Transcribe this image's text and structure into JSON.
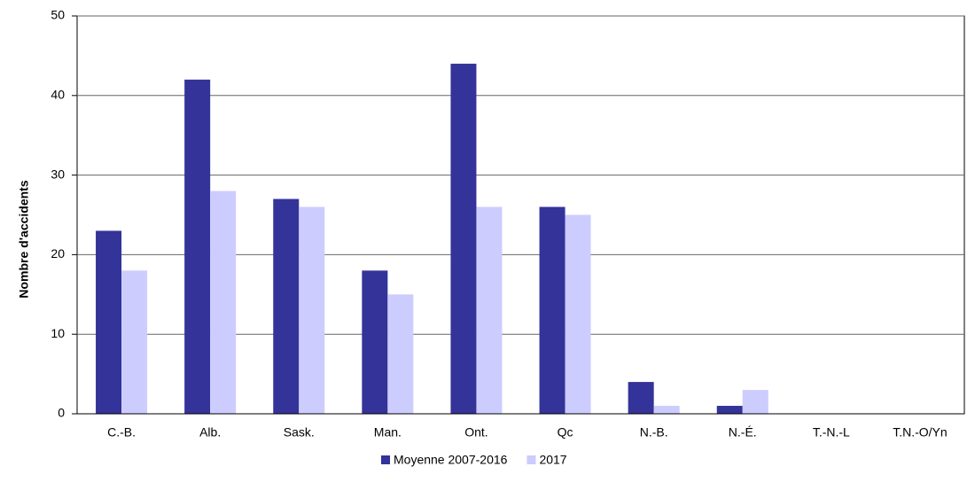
{
  "chart_data": {
    "type": "bar",
    "y_label": "Nombre d'accidents",
    "categories": [
      "C.-B.",
      "Alb.",
      "Sask.",
      "Man.",
      "Ont.",
      "Qc",
      "N.-B.",
      "N.-É.",
      "T.-N.-L",
      "T.N.-O/Yn"
    ],
    "series": [
      {
        "name": "Moyenne 2007-2016",
        "color": "#333399",
        "values": [
          23,
          42,
          27,
          18,
          44,
          26,
          4,
          1,
          0,
          0
        ]
      },
      {
        "name": "2017",
        "color": "#ccccff",
        "values": [
          18,
          28,
          26,
          15,
          26,
          25,
          1,
          3,
          0,
          0
        ]
      }
    ],
    "ylim": [
      0,
      50
    ],
    "yticks": [
      0,
      10,
      20,
      30,
      40,
      50
    ],
    "grid": true,
    "legend": "bottom"
  }
}
